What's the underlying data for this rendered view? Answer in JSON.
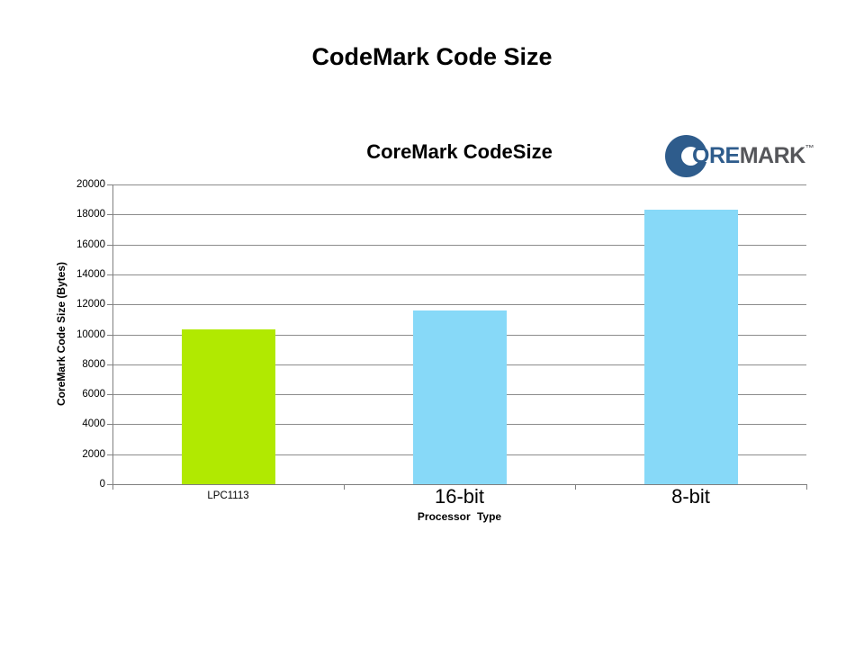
{
  "page_title": "CodeMark Code Size",
  "chart_data": {
    "type": "bar",
    "title": "CoreMark CodeSize",
    "categories": [
      "LPC1113",
      "16-bit",
      "8-bit"
    ],
    "values": [
      10350,
      11600,
      18300
    ],
    "bar_colors": [
      "#B1E901",
      "#87D9F8",
      "#87D9F8"
    ],
    "category_label_sizes": [
      "small",
      "large",
      "large"
    ],
    "xlabel": "Processor Type",
    "ylabel": "CoreMark Code Size (Bytes)",
    "ylim": [
      0,
      20000
    ],
    "yticks": [
      0,
      2000,
      4000,
      6000,
      8000,
      10000,
      12000,
      14000,
      16000,
      18000,
      20000
    ],
    "grid": true,
    "legend": "none"
  },
  "logo": {
    "o": "O",
    "re": "RE",
    "mark": "MARK",
    "tm": "™",
    "blue": "#2E5C8C",
    "dark_gray": "#55565A"
  },
  "colors": {
    "gridline": "#8C8C8C",
    "axis": "#7F7F7F",
    "green_bar": "#B1E901",
    "blue_bar": "#87D9F8",
    "background": "#FFFFFF"
  }
}
